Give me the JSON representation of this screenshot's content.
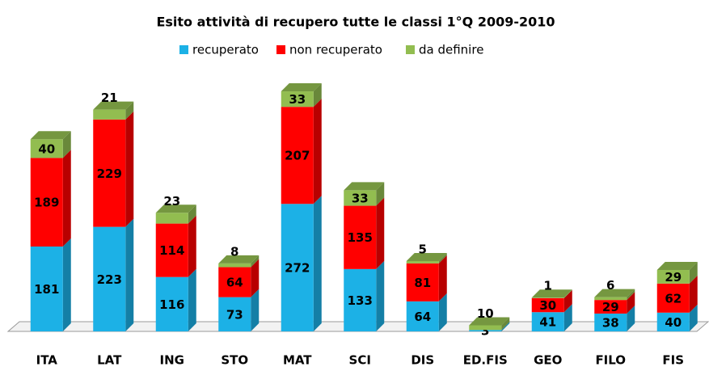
{
  "chart_data": {
    "type": "bar3d_stacked",
    "title": "Esito attività di recupero tutte le classi 1°Q 2009-2010",
    "categories": [
      "ITA",
      "LAT",
      "ING",
      "STO",
      "MAT",
      "SCI",
      "DIS",
      "ED.FIS",
      "GEO",
      "FILO",
      "FIS"
    ],
    "series": [
      {
        "name": "recuperato",
        "color": "#1cb1e6",
        "values": [
          181,
          223,
          116,
          73,
          272,
          133,
          64,
          3,
          41,
          38,
          40
        ]
      },
      {
        "name": "non recuperato",
        "color": "#ff0000",
        "values": [
          189,
          229,
          114,
          64,
          207,
          135,
          81,
          null,
          30,
          29,
          62
        ]
      },
      {
        "name": "da definire",
        "color": "#92bd50",
        "values": [
          40,
          21,
          23,
          8,
          33,
          33,
          5,
          10,
          1,
          6,
          29
        ]
      }
    ],
    "legend": "top"
  }
}
